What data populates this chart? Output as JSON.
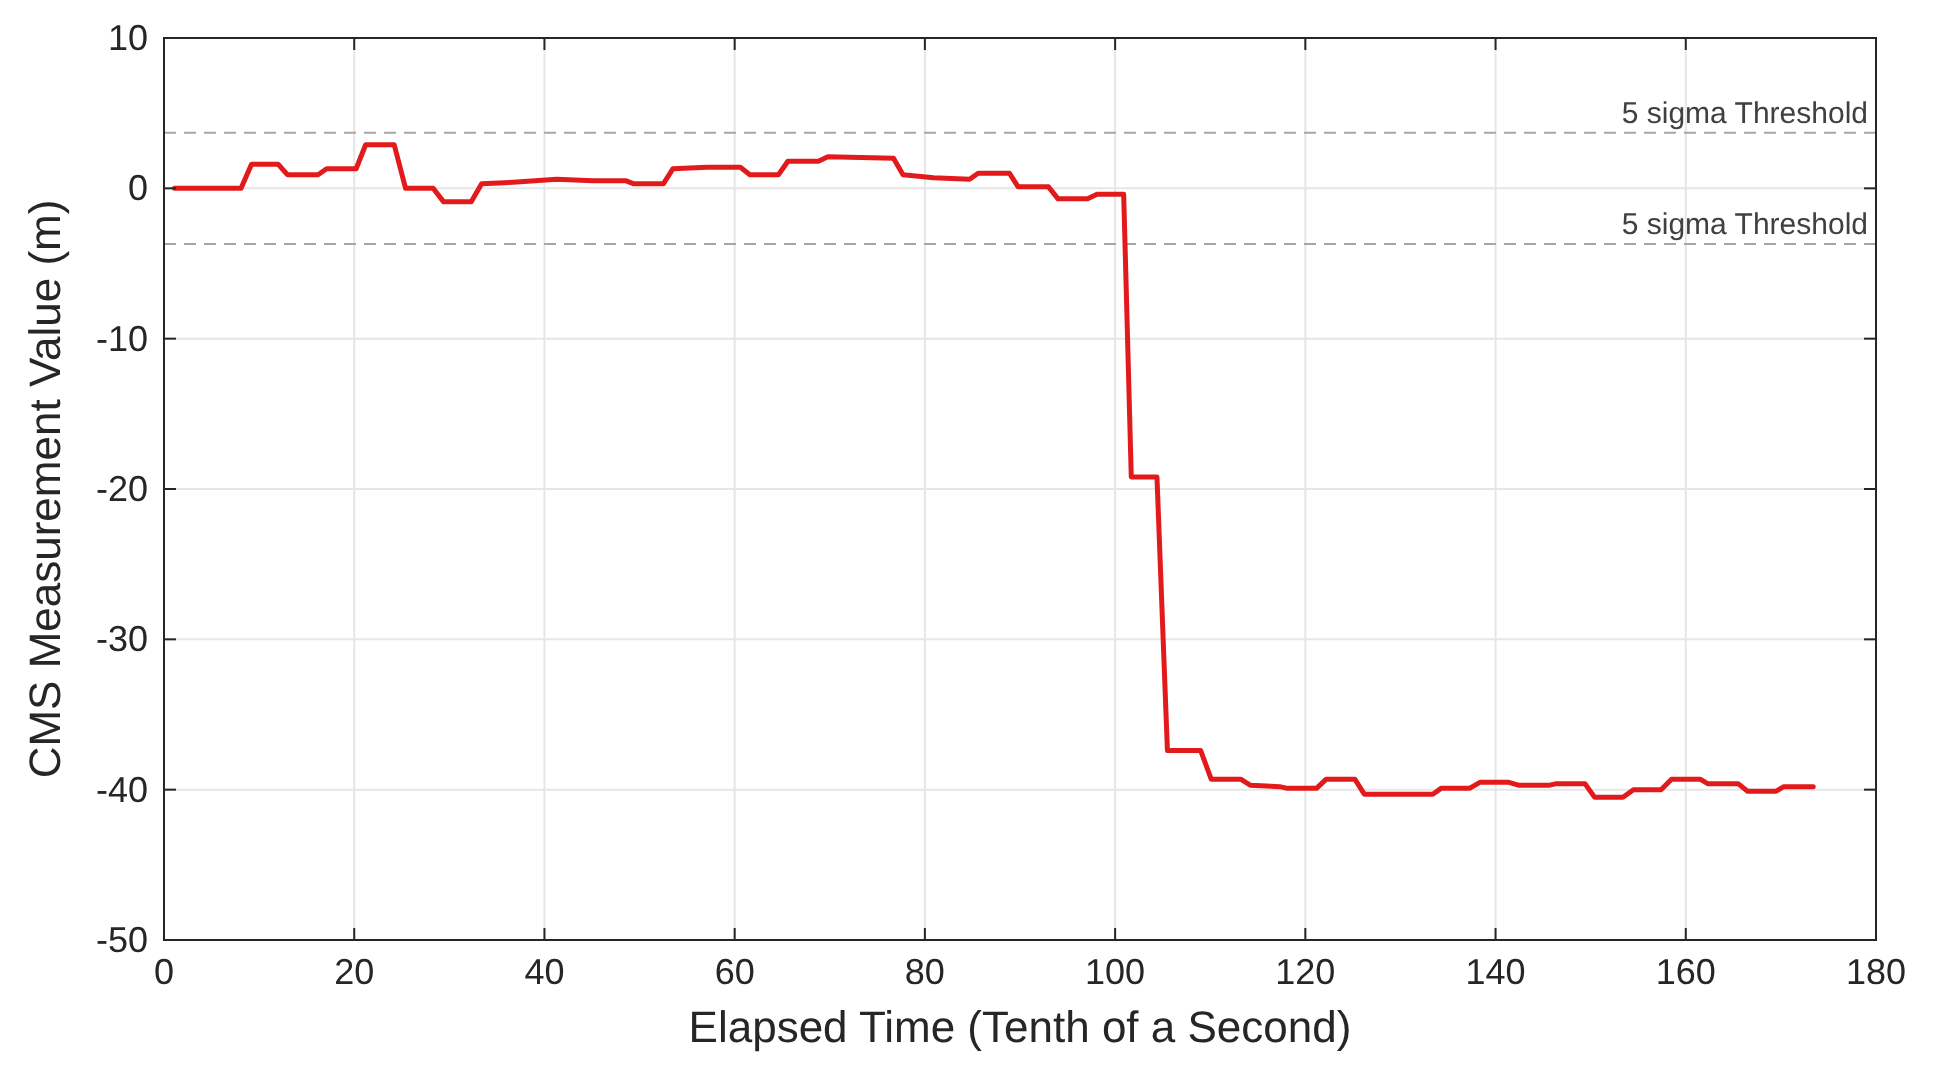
{
  "chart_data": {
    "type": "line",
    "xlabel": "Elapsed Time (Tenth of a Second)",
    "ylabel": "CMS Measurement Value (m)",
    "xlim": [
      0,
      180
    ],
    "xticks": [
      0,
      20,
      40,
      60,
      80,
      100,
      120,
      140,
      160,
      180
    ],
    "ylim": [
      -50,
      10
    ],
    "yticks": [
      -50,
      -40,
      -30,
      -20,
      -10,
      0,
      10
    ],
    "grid": true,
    "marker": "none",
    "line_style": "solid",
    "series": [
      {
        "color": "#e31a1c",
        "x": [
          1.1,
          8.1,
          9.2,
          12.0,
          13.0,
          16.2,
          17.1,
          20.2,
          21.2,
          24.2,
          25.4,
          28.3,
          29.4,
          32.3,
          33.4,
          36.7,
          41.3,
          45.1,
          48.6,
          49.4,
          52.5,
          53.5,
          57.1,
          60.6,
          61.6,
          64.6,
          65.6,
          68.8,
          69.8,
          76.7,
          77.7,
          80.9,
          84.7,
          85.6,
          88.9,
          89.8,
          93.0,
          94.0,
          97.1,
          98.1,
          100.9,
          101.7,
          104.4,
          105.5,
          109.0,
          110.1,
          113.2,
          114.2,
          117.3,
          118.0,
          121.2,
          122.2,
          125.2,
          126.2,
          133.4,
          134.3,
          137.3,
          138.4,
          141.3,
          142.4,
          145.7,
          146.4,
          149.4,
          150.4,
          153.4,
          154.5,
          157.4,
          158.5,
          161.5,
          162.3,
          165.5,
          166.5,
          169.5,
          170.3,
          173.4
        ],
        "values": [
          0,
          0,
          1.6,
          1.6,
          0.9,
          0.9,
          1.3,
          1.3,
          2.9,
          2.9,
          0,
          0,
          -0.9,
          -0.9,
          0.3,
          0.4,
          0.6,
          0.5,
          0.5,
          0.3,
          0.3,
          1.3,
          1.4,
          1.4,
          0.9,
          0.9,
          1.8,
          1.8,
          2.1,
          2.0,
          0.9,
          0.7,
          0.6,
          1.0,
          1.0,
          0.1,
          0.1,
          -0.7,
          -0.7,
          -0.4,
          -0.4,
          -19.2,
          -19.2,
          -37.4,
          -37.4,
          -39.3,
          -39.3,
          -39.7,
          -39.8,
          -39.9,
          -39.9,
          -39.3,
          -39.3,
          -40.3,
          -40.3,
          -39.9,
          -39.9,
          -39.5,
          -39.5,
          -39.7,
          -39.7,
          -39.6,
          -39.6,
          -40.5,
          -40.5,
          -40.0,
          -40.0,
          -39.3,
          -39.3,
          -39.6,
          -39.6,
          -40.1,
          -40.1,
          -39.8,
          -39.8
        ]
      }
    ],
    "ref_lines": [
      {
        "axis": "y",
        "value": 3.7,
        "label": "5 sigma Threshold",
        "color": "#a6a6a6",
        "line_style": "dashed"
      },
      {
        "axis": "y",
        "value": -3.7,
        "label": "5 sigma Threshold",
        "color": "#a6a6a6",
        "line_style": "dashed"
      }
    ]
  }
}
